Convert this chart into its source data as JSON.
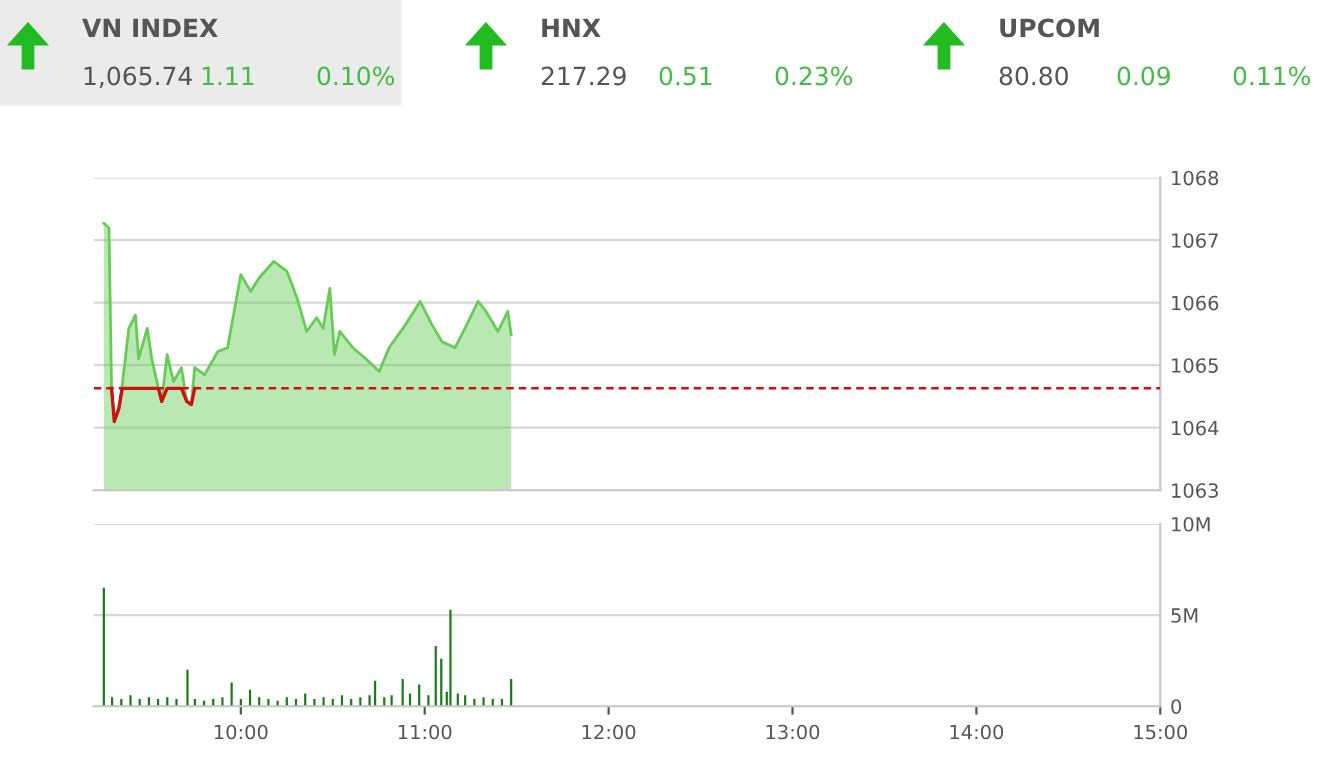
{
  "chart_data": [
    {
      "type": "other",
      "annotations": [
        "VN INDEX",
        "1,065.74",
        "1.11",
        "0.10%",
        "HNX",
        "217.29",
        "0.51",
        "0.23%",
        "UPCOM",
        "80.80",
        "0.09",
        "0.11%"
      ]
    },
    {
      "type": "area",
      "xlim": [
        9.2,
        15
      ],
      "ylim": [
        1063,
        1068
      ],
      "yticks": [
        1063,
        1064,
        1065,
        1066,
        1067,
        1068
      ],
      "grid": "y",
      "tick_labels": "y",
      "ref_lines": [
        {
          "axis": "y",
          "value": 1064.63,
          "color": "#d01010",
          "line_style": "dashed"
        }
      ],
      "series": [
        {
          "type": "area",
          "color": "#66cc55",
          "x": [
            9.255,
            9.283,
            9.297,
            9.312,
            9.337,
            9.355,
            9.391,
            9.427,
            9.444,
            9.491,
            9.516,
            9.552,
            9.57,
            9.599,
            9.634,
            9.677,
            9.706,
            9.731,
            9.749,
            9.803,
            9.875,
            9.928,
            10.0,
            10.054,
            10.1,
            10.179,
            10.251,
            10.305,
            10.358,
            10.412,
            10.448,
            10.484,
            10.509,
            10.538,
            10.609,
            10.681,
            10.753,
            10.806,
            10.896,
            10.975,
            11.039,
            11.093,
            11.165,
            11.219,
            11.29,
            11.333,
            11.398,
            11.452,
            11.47
          ],
          "values": [
            1067.27,
            1067.2,
            1064.63,
            1064.1,
            1064.31,
            1064.69,
            1065.59,
            1065.8,
            1065.1,
            1065.59,
            1065.1,
            1064.63,
            1064.42,
            1065.17,
            1064.74,
            1064.96,
            1064.42,
            1064.37,
            1064.96,
            1064.85,
            1065.22,
            1065.28,
            1066.45,
            1066.18,
            1066.4,
            1066.66,
            1066.5,
            1066.08,
            1065.54,
            1065.76,
            1065.59,
            1066.23,
            1065.17,
            1065.54,
            1065.28,
            1065.1,
            1064.9,
            1065.28,
            1065.65,
            1066.02,
            1065.65,
            1065.38,
            1065.28,
            1065.59,
            1066.02,
            1065.86,
            1065.54,
            1065.86,
            1065.49
          ]
        },
        {
          "type": "line",
          "color": "#d01010",
          "x": [
            9.297,
            9.312,
            9.337,
            9.355,
            9.552,
            9.57,
            9.599,
            9.677,
            9.706,
            9.731,
            9.749
          ],
          "values": [
            1064.63,
            1064.1,
            1064.31,
            1064.63,
            1064.63,
            1064.42,
            1064.63,
            1064.63,
            1064.42,
            1064.37,
            1064.63
          ]
        }
      ]
    },
    {
      "type": "bar",
      "xlim": [
        9.2,
        15
      ],
      "xticks": [
        {
          "value": 10,
          "label": "10:00"
        },
        {
          "value": 11,
          "label": "11:00"
        },
        {
          "value": 12,
          "label": "12:00"
        },
        {
          "value": 13,
          "label": "13:00"
        },
        {
          "value": 14,
          "label": "14:00"
        },
        {
          "value": 15,
          "label": "15:00"
        }
      ],
      "ylim": [
        0,
        10000000
      ],
      "yticks": [
        {
          "value": 0,
          "label": "0"
        },
        {
          "value": 5000000,
          "label": "5M"
        },
        {
          "value": 10000000,
          "label": "10M"
        }
      ],
      "grid": "y",
      "series": [
        {
          "color": "#1a7a1a",
          "x": [
            9.255,
            9.3,
            9.35,
            9.4,
            9.45,
            9.5,
            9.55,
            9.6,
            9.65,
            9.71,
            9.75,
            9.8,
            9.85,
            9.9,
            9.95,
            10.0,
            10.05,
            10.1,
            10.15,
            10.2,
            10.25,
            10.3,
            10.35,
            10.4,
            10.45,
            10.5,
            10.55,
            10.6,
            10.65,
            10.7,
            10.73,
            10.78,
            10.82,
            10.88,
            10.92,
            10.97,
            11.02,
            11.06,
            11.09,
            11.12,
            11.14,
            11.18,
            11.22,
            11.27,
            11.32,
            11.37,
            11.42,
            11.47
          ],
          "values": [
            6500000,
            500000,
            400000,
            600000,
            400000,
            500000,
            400000,
            500000,
            400000,
            2000000,
            400000,
            300000,
            400000,
            500000,
            1300000,
            400000,
            900000,
            500000,
            400000,
            300000,
            500000,
            400000,
            700000,
            400000,
            500000,
            400000,
            600000,
            400000,
            500000,
            600000,
            1400000,
            500000,
            600000,
            1500000,
            700000,
            1200000,
            600000,
            3300000,
            2600000,
            800000,
            5300000,
            700000,
            600000,
            400000,
            500000,
            400000,
            400000,
            1500000
          ]
        }
      ]
    }
  ]
}
